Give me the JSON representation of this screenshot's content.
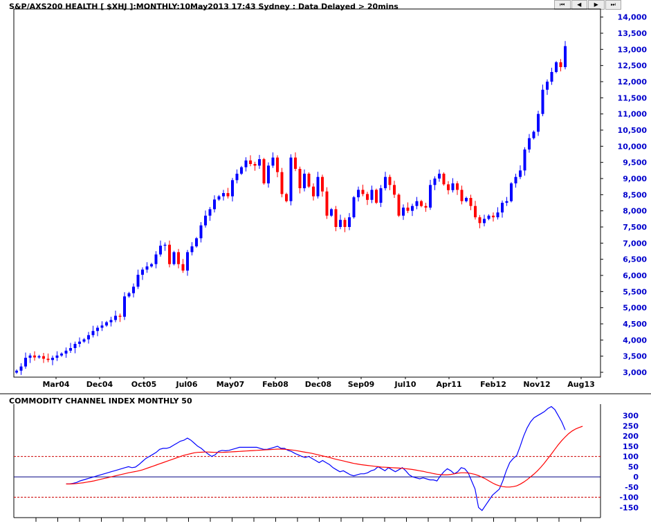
{
  "main_title": "S&P/AXS200 HEALTH [ $XHJ ]:MONTHLY:10May2013 17:43 Sydney : Data Delayed > 20mins",
  "cci_title": "COMMODITY CHANNEL INDEX MONTHLY 50",
  "nav_buttons": [
    {
      "name": "first-button",
      "label": "⏮"
    },
    {
      "name": "prev-button",
      "label": "◀"
    },
    {
      "name": "next-button",
      "label": "▶"
    },
    {
      "name": "last-button",
      "label": "⏭"
    }
  ],
  "colors": {
    "up": "#0000ff",
    "down": "#ff0000",
    "cci": "#0000ff",
    "cci_avg": "#ff0000",
    "axis_text": "#0000cc",
    "guide": "#cc0000"
  },
  "chart_data": [
    {
      "type": "candlestick",
      "title": "S&P/AXS200 HEALTH [ $XHJ ]:MONTHLY:10May2013 17:43 Sydney : Data Delayed > 20mins",
      "x_tick_labels": [
        "Mar04",
        "Dec04",
        "Oct05",
        "Jul06",
        "May07",
        "Feb08",
        "Dec08",
        "Sep09",
        "Jul10",
        "Apr11",
        "Feb12",
        "Nov12",
        "Aug13"
      ],
      "y_tick_labels": [
        "3,000",
        "3,500",
        "4,000",
        "4,500",
        "5,000",
        "5,500",
        "6,000",
        "6,500",
        "7,000",
        "7,500",
        "8,000",
        "8,500",
        "9,000",
        "9,500",
        "10,000",
        "10,500",
        "11,000",
        "11,500",
        "12,000",
        "12,500",
        "13,000",
        "13,500",
        "14,000"
      ],
      "ylim": [
        2850,
        14250
      ],
      "start_month": "2003-05",
      "closes": [
        3050,
        3180,
        3450,
        3520,
        3460,
        3500,
        3420,
        3380,
        3450,
        3520,
        3580,
        3670,
        3750,
        3880,
        3950,
        4020,
        4150,
        4280,
        4380,
        4450,
        4550,
        4620,
        4750,
        4720,
        5350,
        5450,
        5650,
        6020,
        6180,
        6280,
        6350,
        6650,
        6920,
        6950,
        6350,
        6720,
        6350,
        6150,
        6720,
        6900,
        7150,
        7550,
        7850,
        8050,
        8350,
        8450,
        8550,
        8450,
        8950,
        9150,
        9350,
        9560,
        9450,
        9400,
        9600,
        8850,
        9400,
        9650,
        9200,
        8520,
        8300,
        9650,
        9300,
        8700,
        9150,
        8750,
        8450,
        9050,
        8600,
        7850,
        8050,
        7500,
        7720,
        7500,
        7800,
        8420,
        8650,
        8520,
        8340,
        8650,
        8250,
        8700,
        9050,
        8800,
        8500,
        7850,
        8100,
        8000,
        8150,
        8300,
        8150,
        8100,
        8800,
        9000,
        9150,
        8820,
        8640,
        8850,
        8650,
        8300,
        8400,
        8150,
        7800,
        7620,
        7750,
        7850,
        7800,
        7950,
        8250,
        8300,
        8850,
        9050,
        9250,
        9900,
        10250,
        10450,
        11000,
        11750,
        12000,
        12300,
        12600,
        12450,
        13100
      ]
    },
    {
      "type": "line",
      "title": "COMMODITY CHANNEL INDEX MONTHLY 50",
      "y_tick_labels": [
        "-150",
        "-100",
        "-50",
        "0",
        "50",
        "100",
        "150",
        "200",
        "250",
        "300"
      ],
      "ylim": [
        -200,
        350
      ],
      "guide_levels": [
        100,
        0,
        -100
      ],
      "series": [
        {
          "start_index": 11,
          "values": [
            -35,
            -35,
            -32,
            -28,
            -20,
            -15,
            -10,
            -5,
            0,
            5,
            10,
            15,
            20,
            25,
            30,
            35,
            40,
            45,
            50,
            45,
            48,
            60,
            75,
            90,
            100,
            110,
            120,
            135,
            140,
            140,
            145,
            155,
            165,
            175,
            180,
            190,
            180,
            165,
            150,
            140,
            125,
            112,
            100,
            108,
            125,
            130,
            128,
            130,
            135,
            140,
            145,
            145,
            145,
            145,
            145,
            145,
            140,
            135,
            135,
            140,
            145,
            150,
            140,
            140,
            130,
            125,
            115,
            108,
            100,
            95,
            100,
            90,
            80,
            70,
            80,
            70,
            60,
            45,
            35,
            25,
            30,
            20,
            10,
            5,
            10,
            15,
            15,
            20,
            30,
            35,
            50,
            40,
            30,
            45,
            35,
            25,
            35,
            45,
            30,
            10,
            0,
            -5,
            -10,
            -5,
            -10,
            -15,
            -15,
            -20,
            5,
            25,
            40,
            30,
            15,
            25,
            45,
            40,
            20,
            -20,
            -60,
            -150,
            -165,
            -140,
            -115,
            -90,
            -75,
            -60,
            -20,
            30,
            70,
            90,
            105,
            150,
            200,
            240,
            270,
            290,
            300,
            310,
            320,
            335,
            345,
            330,
            300,
            270,
            230
          ]
        },
        {
          "start_index": 11,
          "values": [
            -35,
            -35,
            -34,
            -33,
            -31,
            -29,
            -26,
            -23,
            -20,
            -16,
            -12,
            -8,
            -4,
            0,
            4,
            8,
            12,
            16,
            20,
            23,
            26,
            30,
            34,
            40,
            46,
            52,
            58,
            64,
            70,
            76,
            82,
            88,
            94,
            100,
            106,
            110,
            114,
            118,
            120,
            121,
            122,
            122,
            121,
            120,
            120,
            120,
            121,
            122,
            123,
            124,
            125,
            126,
            127,
            128,
            129,
            130,
            131,
            132,
            133,
            134,
            135,
            136,
            136,
            135,
            134,
            132,
            130,
            127,
            124,
            121,
            118,
            115,
            111,
            107,
            103,
            99,
            95,
            90,
            86,
            82,
            78,
            74,
            70,
            66,
            63,
            60,
            58,
            56,
            54,
            52,
            50,
            48,
            47,
            46,
            45,
            44,
            43,
            42,
            40,
            38,
            36,
            33,
            30,
            27,
            23,
            20,
            16,
            13,
            11,
            10,
            10,
            12,
            15,
            18,
            20,
            20,
            19,
            16,
            12,
            6,
            -2,
            -10,
            -20,
            -30,
            -38,
            -44,
            -48,
            -50,
            -50,
            -48,
            -44,
            -36,
            -26,
            -14,
            0,
            14,
            30,
            48,
            68,
            90,
            112,
            135,
            158,
            178,
            196,
            212,
            225,
            235,
            242,
            248
          ]
        }
      ]
    }
  ]
}
